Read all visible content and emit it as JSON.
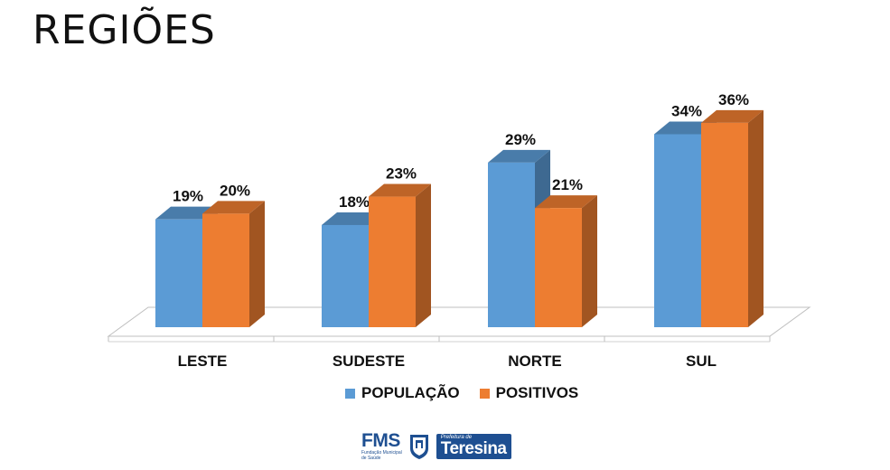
{
  "title": "REGIÕES",
  "chart_data": {
    "type": "bar",
    "categories": [
      "LESTE",
      "SUDESTE",
      "NORTE",
      "SUL"
    ],
    "series": [
      {
        "name": "POPULAÇÃO",
        "values": [
          19,
          18,
          29,
          34
        ],
        "labels": [
          "19%",
          "18%",
          "29%",
          "34%"
        ],
        "color": "#5b9bd5"
      },
      {
        "name": "POSITIVOS",
        "values": [
          20,
          23,
          21,
          36
        ],
        "labels": [
          "20%",
          "23%",
          "21%",
          "36%"
        ],
        "color": "#ed7d31"
      }
    ],
    "ylim": [
      0,
      40
    ],
    "grid": false,
    "legend": "bottom",
    "style": "3d"
  },
  "logo": {
    "fms": "FMS",
    "fms_sub": [
      "Fundação Municipal",
      "de Saúde"
    ],
    "prefeitura": "Prefeitura de",
    "city": "Teresina"
  }
}
